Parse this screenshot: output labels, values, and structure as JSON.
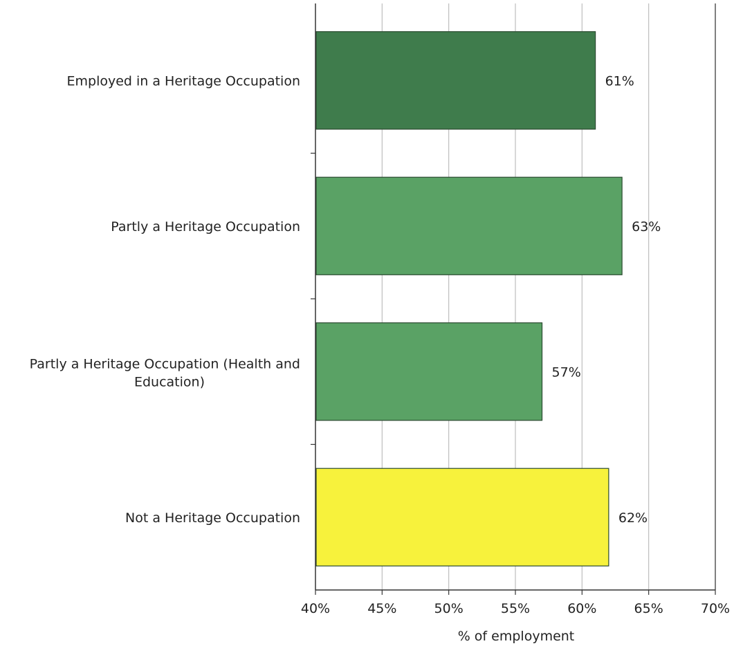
{
  "chart_data": {
    "type": "bar",
    "orientation": "horizontal",
    "categories": [
      "Employed in a Heritage Occupation",
      "Partly a Heritage Occupation",
      "Partly a Heritage Occupation (Health and Education)",
      "Not a Heritage Occupation"
    ],
    "values": [
      61,
      63,
      57,
      62
    ],
    "value_labels": [
      "61%",
      "63%",
      "57%",
      "62%"
    ],
    "bar_colors": [
      "#3f7c4c",
      "#5aa265",
      "#5aa265",
      "#f7f23c"
    ],
    "xlabel": "% of employment",
    "ylabel": "",
    "xlim": [
      40,
      70
    ],
    "x_ticks": [
      40,
      45,
      50,
      55,
      60,
      65,
      70
    ],
    "x_tick_labels": [
      "40%",
      "45%",
      "50%",
      "55%",
      "60%",
      "65%",
      "70%"
    ],
    "grid": "vertical",
    "legend": "none"
  },
  "colors": {
    "grid": "#bdbdbd",
    "axis": "#333333",
    "bar_stroke": "#2a4a30"
  }
}
